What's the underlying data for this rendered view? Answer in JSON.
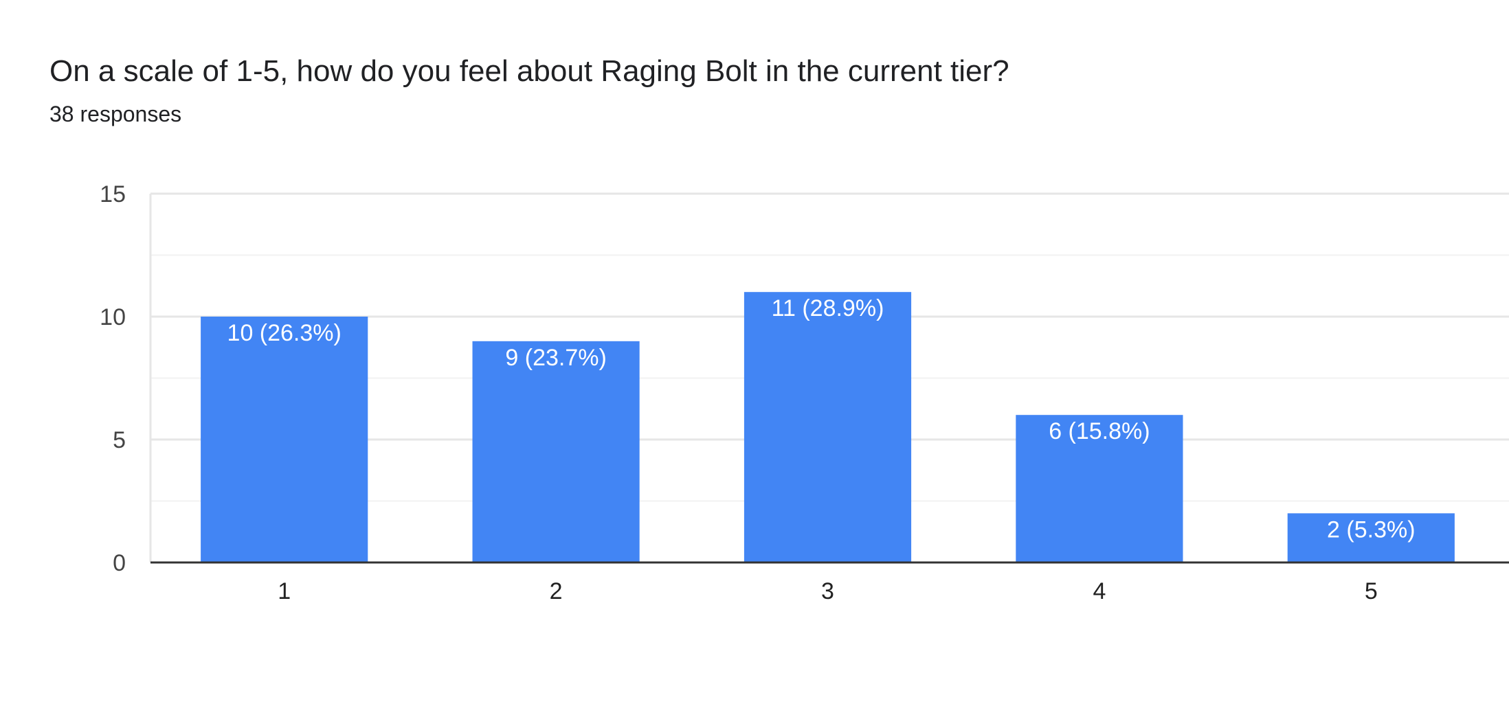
{
  "header": {
    "title": "On a scale of 1-5, how do you feel about Raging Bolt in the current tier?",
    "responses": "38 responses"
  },
  "colors": {
    "bar": "#4285f4",
    "grid_major": "#e6e6e6",
    "grid_minor": "#f2f2f2",
    "axis": "#333333",
    "bar_label": "#ffffff"
  },
  "chart_data": {
    "type": "bar",
    "categories": [
      "1",
      "2",
      "3",
      "4",
      "5"
    ],
    "values": [
      10,
      9,
      11,
      6,
      2
    ],
    "data_labels": [
      "10 (26.3%)",
      "9 (23.7%)",
      "11 (28.9%)",
      "6 (15.8%)",
      "2 (5.3%)"
    ],
    "yticks": [
      "0",
      "5",
      "10",
      "15"
    ],
    "ylim": [
      0,
      15
    ],
    "minor_grid_step": 2.5,
    "xlabel": "",
    "ylabel": "",
    "grid": true,
    "legend": "none"
  }
}
